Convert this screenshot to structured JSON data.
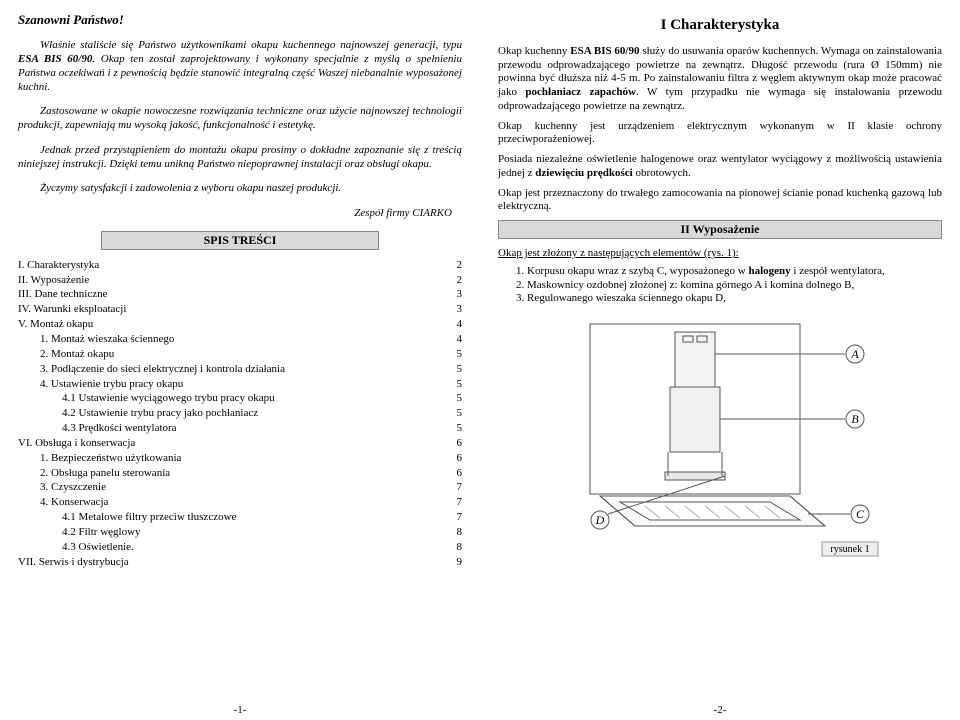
{
  "left": {
    "salutation": "Szanowni Państwo!",
    "intro1": "Właśnie staliście się Państwo użytkownikami okapu kuchennego najnowszej generacji, typu ",
    "product": "ESA BIS 60/90",
    "intro1b": ". Okap ten został zaprojektowany i wykonany specjalnie z myślą o spełnieniu Państwa oczekiwań i z pewnością będzie stanowić integralną część Waszej niebanalnie wyposażonej kuchni.",
    "intro2": "Zastosowane w okapie nowoczesne rozwiązania techniczne oraz użycie najnowszej technologii produkcji, zapewniają mu wysoką jakość, funkcjonalność i estetykę.",
    "intro3": "Jednak przed przystąpieniem do montażu okapu prosimy o dokładne zapoznanie się z treścią niniejszej instrukcji. Dzięki temu unikną Państwo niepoprawnej instalacji oraz obsługi okapu.",
    "intro4": "Życzymy satysfakcji i zadowolenia z wyboru okapu naszej produkcji.",
    "signature": "Zespół firmy CIARKO",
    "toc_title": "SPIS TREŚCI",
    "toc": [
      {
        "lvl": 0,
        "t": "I. Charakterystyka",
        "p": "2"
      },
      {
        "lvl": 0,
        "t": "II. Wyposażenie",
        "p": "2"
      },
      {
        "lvl": 0,
        "t": "III. Dane techniczne",
        "p": "3"
      },
      {
        "lvl": 0,
        "t": "IV. Warunki eksploatacji",
        "p": "3"
      },
      {
        "lvl": 0,
        "t": "V. Montaż okapu",
        "p": "4"
      },
      {
        "lvl": 1,
        "t": "1.   Montaż wieszaka ściennego",
        "p": "4"
      },
      {
        "lvl": 1,
        "t": "2.   Montaż okapu",
        "p": "5"
      },
      {
        "lvl": 1,
        "t": "3.   Podłączenie do sieci elektrycznej i kontrola działania",
        "p": "5"
      },
      {
        "lvl": 1,
        "t": "4.   Ustawienie trybu pracy okapu",
        "p": "5"
      },
      {
        "lvl": 2,
        "t": "4.1  Ustawienie wyciągowego trybu pracy okapu",
        "p": "5"
      },
      {
        "lvl": 2,
        "t": "4.2  Ustawienie trybu pracy jako pochłaniacz",
        "p": "5"
      },
      {
        "lvl": 2,
        "t": "4.3  Prędkości wentylatora",
        "p": "5"
      },
      {
        "lvl": 0,
        "t": "VI. Obsługa i konserwacja",
        "p": "6"
      },
      {
        "lvl": 1,
        "t": "1.   Bezpieczeństwo użytkowania",
        "p": "6"
      },
      {
        "lvl": 1,
        "t": "2.   Obsługa panelu sterowania",
        "p": "6"
      },
      {
        "lvl": 1,
        "t": "3.   Czyszczenie",
        "p": "7"
      },
      {
        "lvl": 1,
        "t": "4.   Konserwacja",
        "p": "7"
      },
      {
        "lvl": 2,
        "t": "4.1  Metalowe filtry przeciw tłuszczowe",
        "p": "7"
      },
      {
        "lvl": 2,
        "t": "4.2  Filtr węglowy",
        "p": "8"
      },
      {
        "lvl": 2,
        "t": "4.3  Oświetlenie.",
        "p": "8"
      },
      {
        "lvl": 0,
        "t": "VII. Serwis i dystrybucja",
        "p": "9"
      }
    ],
    "pagenum": "-1-"
  },
  "right": {
    "h1": "I Charakterystyka",
    "p1a": "Okap kuchenny ",
    "p1b": "ESA BIS 60/90",
    "p1c": " służy do usuwania oparów kuchennych. Wymaga on zainstalowania przewodu odprowadzającego powietrze na zewnątrz. Długość przewodu (rura Ø 150mm) nie powinna być dłuższa niż 4-5 m. Po zainstalowaniu filtra z węglem aktywnym okap może pracować jako ",
    "p1d": "pochłaniacz zapachów",
    "p1e": ". W tym przypadku nie wymaga się instalowania przewodu odprowadzającego powietrze na zewnątrz.",
    "p2": "Okap kuchenny jest urządzeniem elektrycznym wykonanym w II klasie ochrony przeciwporażeniowej.",
    "p3a": "Posiada niezależne oświetlenie halogenowe oraz wentylator wyciągowy z możliwością ustawienia jednej z ",
    "p3b": "dziewięciu prędkości",
    "p3c": " obrotowych.",
    "p4": "Okap jest przeznaczony do trwałego zamocowania na pionowej ścianie ponad kuchenką gazową lub elektryczną.",
    "h2": "II Wyposażenie",
    "sub": "Okap jest złożony z następujących elementów (rys. 1):",
    "list": [
      "1.   Korpusu okapu wraz z szybą C, wyposażonego w halogeny i zespół wentylatora,",
      "2.   Maskownicy ozdobnej złożonej z: komina górnego A i komina dolnego B,",
      "3.   Regulowanego wieszaka ściennego okapu D,"
    ],
    "pagenum": "-2-",
    "fig_label": "rysunek 1",
    "callouts": {
      "A": "A",
      "B": "B",
      "C": "C",
      "D": "D"
    }
  }
}
